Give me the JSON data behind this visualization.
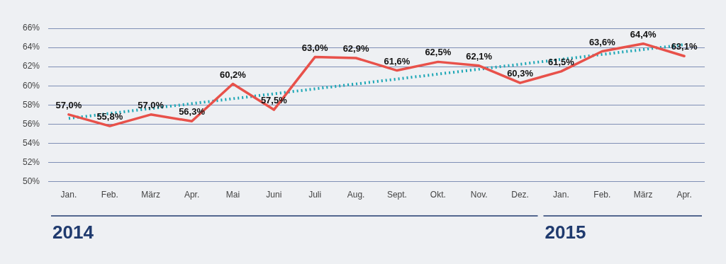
{
  "chart_data": {
    "type": "line",
    "categories": [
      "Jan.",
      "Feb.",
      "März",
      "Apr.",
      "Mai",
      "Juni",
      "Juli",
      "Aug.",
      "Sept.",
      "Okt.",
      "Nov.",
      "Dez.",
      "Jan.",
      "Feb.",
      "März",
      "Apr."
    ],
    "series": [
      {
        "color": "#e8514a",
        "values": [
          57.0,
          55.8,
          57.0,
          56.3,
          60.2,
          57.5,
          63.0,
          62.9,
          61.6,
          62.5,
          62.1,
          60.3,
          61.5,
          63.6,
          64.4,
          63.1
        ],
        "value_labels": [
          "57,0%",
          "55,8%",
          "57,0%",
          "56,3%",
          "60,2%",
          "57,5%",
          "63,0%",
          "62,9%",
          "61,6%",
          "62,5%",
          "62,1%",
          "60,3%",
          "61,5%",
          "63,6%",
          "64,4%",
          "63,1%"
        ]
      },
      {
        "type": "line",
        "color": "#1ba6b5",
        "line_style": "dotted",
        "values": [
          56.6,
          null,
          null,
          null,
          null,
          null,
          null,
          null,
          null,
          null,
          null,
          null,
          null,
          null,
          null,
          64.3
        ]
      }
    ],
    "ylim": [
      50,
      66
    ],
    "yticks": [
      {
        "value": 50,
        "label": "50%"
      },
      {
        "value": 52,
        "label": "52%"
      },
      {
        "value": 54,
        "label": "54%"
      },
      {
        "value": 56,
        "label": "56%"
      },
      {
        "value": 58,
        "label": "58%"
      },
      {
        "value": 60,
        "label": "60%"
      },
      {
        "value": 62,
        "label": "62%"
      },
      {
        "value": 64,
        "label": "64%"
      },
      {
        "value": 66,
        "label": "66%"
      }
    ],
    "grid": "y",
    "legend": false,
    "marker": "none",
    "annotations": [
      "2014",
      "2015"
    ]
  }
}
